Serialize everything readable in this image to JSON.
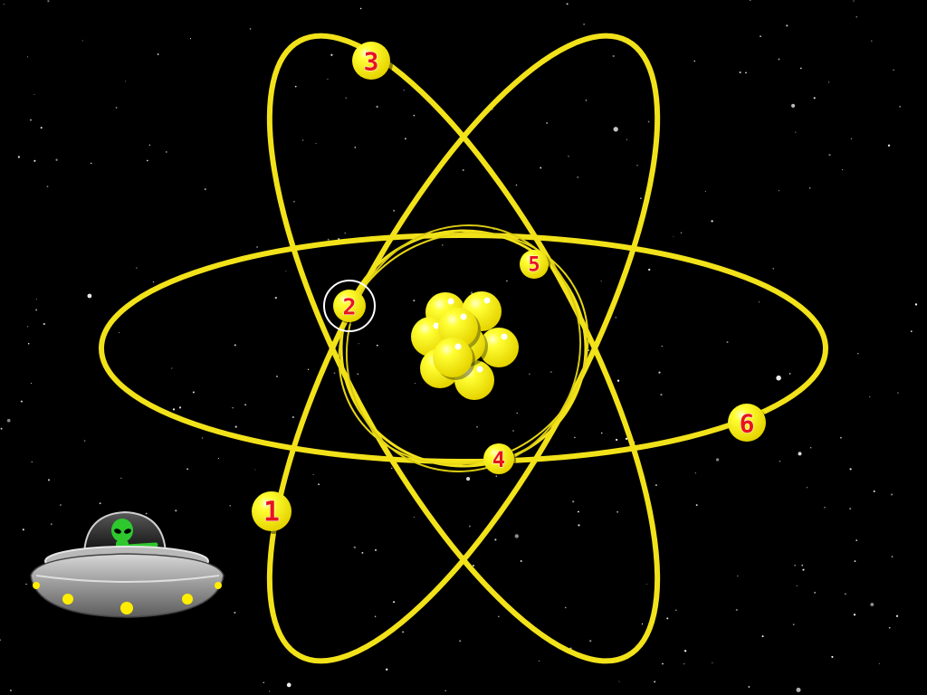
{
  "game": {
    "theme": "atom-electron-counting",
    "selected_electron": "2"
  },
  "colors": {
    "background": "#000000",
    "orbit": "#f2e21a",
    "electron_fill": "#ffee00",
    "electron_label": "#e8141c",
    "nucleus": "#ffee00",
    "selection_ring": "#ffffff",
    "ufo_hull": "#9a9a9a",
    "ufo_lights": "#ffee00",
    "alien": "#2ec82e"
  },
  "electrons": [
    {
      "label": "1",
      "state": "idle"
    },
    {
      "label": "2",
      "state": "selected"
    },
    {
      "label": "3",
      "state": "idle"
    },
    {
      "label": "4",
      "state": "idle"
    },
    {
      "label": "5",
      "state": "idle"
    },
    {
      "label": "6",
      "state": "idle"
    }
  ],
  "icons": {
    "nucleus": "nucleus-icon",
    "ufo": "ufo-icon",
    "alien": "alien-icon"
  }
}
